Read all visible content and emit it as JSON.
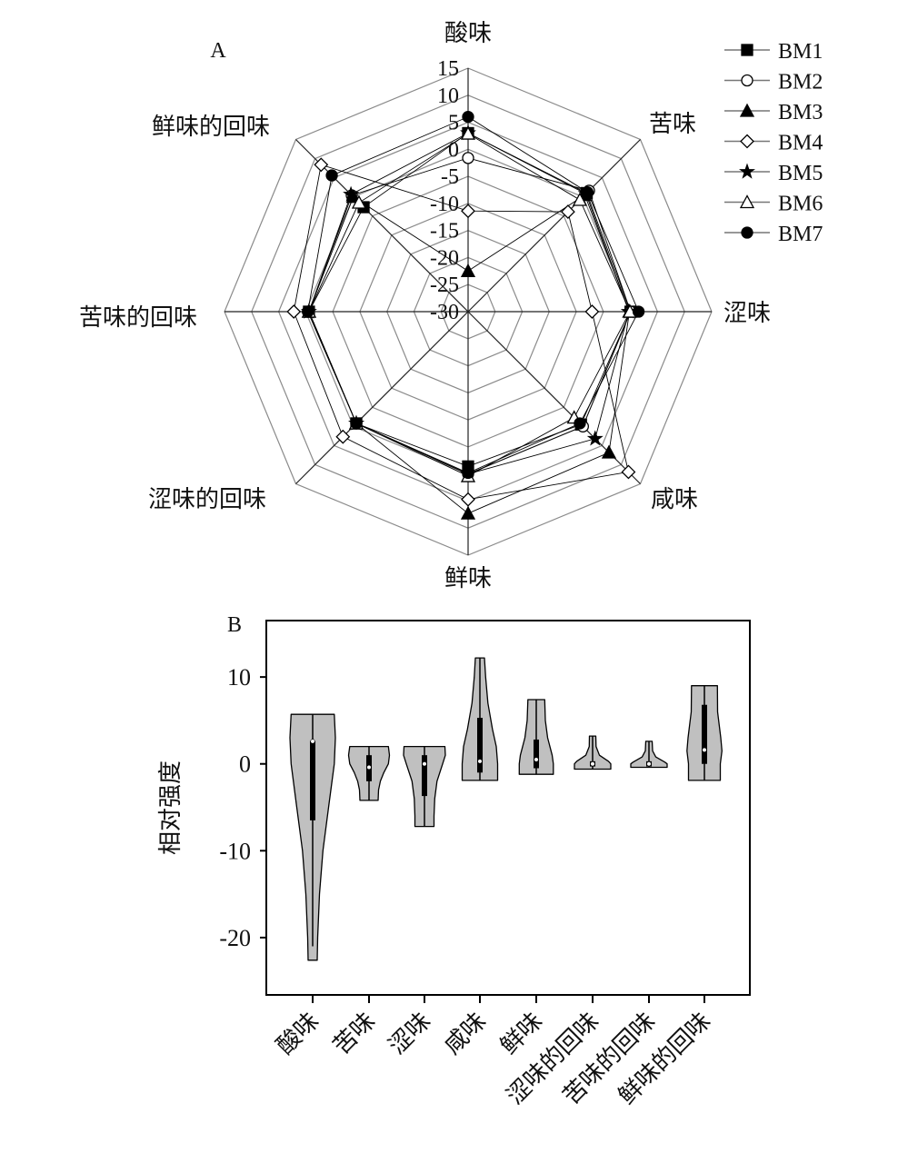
{
  "chart_data": [
    {
      "type": "radar",
      "panel_label": "A",
      "axes": [
        "酸味",
        "苦味",
        "涩味",
        "咸味",
        "鲜味",
        "涩味的回味",
        "苦味的回味",
        "鲜味的回味"
      ],
      "radial_ticks": [
        15,
        10,
        5,
        0,
        -5,
        -10,
        -15,
        -20,
        -25,
        -30
      ],
      "rlim": [
        -30,
        15
      ],
      "grid": true,
      "legend": "top-right",
      "series": [
        {
          "name": "BM1",
          "marker": "filled-square",
          "values": [
            3,
            1,
            0,
            -0.5,
            -1.4,
            -0.8,
            -0.6,
            -2.7
          ]
        },
        {
          "name": "BM2",
          "marker": "open-circle",
          "values": [
            -1.6,
            1.6,
            0,
            0,
            0,
            -0.8,
            -0.6,
            0.4
          ]
        },
        {
          "name": "BM3",
          "marker": "filled-triangle",
          "values": [
            -22.5,
            0.5,
            -0.2,
            6.8,
            7.3,
            -0.8,
            -0.6,
            0
          ]
        },
        {
          "name": "BM4",
          "marker": "open-diamond",
          "values": [
            -11.4,
            -3.9,
            -7.1,
            11.9,
            4.7,
            2.7,
            2.2,
            8.4
          ]
        },
        {
          "name": "BM5",
          "marker": "filled-star",
          "values": [
            3,
            0.8,
            -0.3,
            3.2,
            0,
            -0.8,
            -0.6,
            0.6
          ]
        },
        {
          "name": "BM6",
          "marker": "open-triangle",
          "values": [
            2.9,
            -0.8,
            -0.1,
            -2.3,
            0.4,
            -0.8,
            -0.6,
            -1.5
          ]
        },
        {
          "name": "BM7",
          "marker": "filled-circle",
          "values": [
            6.0,
            1.2,
            1.5,
            -0.8,
            -0.2,
            -0.8,
            -0.4,
            5.6
          ]
        }
      ]
    },
    {
      "type": "violin",
      "panel_label": "B",
      "ylabel": "相对强度",
      "yticks": [
        10,
        0,
        -10,
        -20
      ],
      "ylim": [
        -26.6,
        16.5
      ],
      "fill_color": "#c0c0c0",
      "categories": [
        "酸味",
        "苦味",
        "涩味",
        "咸味",
        "鲜味",
        "涩味的回味",
        "苦味的回味",
        "鲜味的回味"
      ],
      "violins": [
        {
          "min": -22.6,
          "max": 5.7,
          "median": 2.6,
          "q1": -6.5,
          "q3": 2.6,
          "whisker_low": -21,
          "whisker_high": 5.7,
          "density": [
            [
              5.7,
              0.95
            ],
            [
              3,
              1
            ],
            [
              0,
              0.95
            ],
            [
              -5,
              0.7
            ],
            [
              -10,
              0.45
            ],
            [
              -15,
              0.3
            ],
            [
              -20,
              0.22
            ],
            [
              -22.6,
              0.2
            ]
          ]
        },
        {
          "min": -4.2,
          "max": 2,
          "median": -0.4,
          "q1": -2,
          "q3": 1,
          "whisker_low": -4.2,
          "whisker_high": 2,
          "density": [
            [
              2,
              0.85
            ],
            [
              1,
              0.9
            ],
            [
              0,
              0.85
            ],
            [
              -1,
              0.65
            ],
            [
              -2,
              0.5
            ],
            [
              -3,
              0.42
            ],
            [
              -4.2,
              0.4
            ]
          ]
        },
        {
          "min": -7.2,
          "max": 2,
          "median": 0,
          "q1": -3.7,
          "q3": 1,
          "whisker_low": -7.2,
          "whisker_high": 2,
          "density": [
            [
              2,
              0.9
            ],
            [
              1,
              0.92
            ],
            [
              0,
              0.8
            ],
            [
              -2,
              0.55
            ],
            [
              -4,
              0.45
            ],
            [
              -6,
              0.42
            ],
            [
              -7.2,
              0.42
            ]
          ]
        },
        {
          "min": -1.9,
          "max": 12.2,
          "median": 0.3,
          "q1": -1,
          "q3": 5.3,
          "whisker_low": -1.9,
          "whisker_high": 12.2,
          "density": [
            [
              12.2,
              0.2
            ],
            [
              10,
              0.25
            ],
            [
              7,
              0.35
            ],
            [
              4,
              0.55
            ],
            [
              2,
              0.72
            ],
            [
              0,
              0.78
            ],
            [
              -1.9,
              0.78
            ]
          ]
        },
        {
          "min": -1.2,
          "max": 7.4,
          "median": 0.5,
          "q1": -0.5,
          "q3": 2.8,
          "whisker_low": -1.2,
          "whisker_high": 7.4,
          "density": [
            [
              7.4,
              0.37
            ],
            [
              5,
              0.4
            ],
            [
              3,
              0.5
            ],
            [
              1,
              0.7
            ],
            [
              0,
              0.75
            ],
            [
              -1.2,
              0.75
            ]
          ]
        },
        {
          "min": -0.6,
          "max": 3.2,
          "median": 0,
          "q1": -0.3,
          "q3": 0.3,
          "whisker_low": -0.6,
          "whisker_high": 3.2,
          "density": [
            [
              3.2,
              0.14
            ],
            [
              2,
              0.15
            ],
            [
              1,
              0.3
            ],
            [
              0.3,
              0.7
            ],
            [
              0,
              0.8
            ],
            [
              -0.6,
              0.8
            ]
          ]
        },
        {
          "min": -0.4,
          "max": 2.6,
          "median": 0,
          "q1": -0.3,
          "q3": 0.3,
          "whisker_low": -0.4,
          "whisker_high": 2.6,
          "density": [
            [
              2.6,
              0.14
            ],
            [
              1.5,
              0.16
            ],
            [
              0.8,
              0.3
            ],
            [
              0.2,
              0.7
            ],
            [
              0,
              0.8
            ],
            [
              -0.4,
              0.8
            ]
          ]
        },
        {
          "min": -1.9,
          "max": 9,
          "median": 1.6,
          "q1": 0,
          "q3": 6.8,
          "whisker_low": -1.9,
          "whisker_high": 9,
          "density": [
            [
              9,
              0.57
            ],
            [
              6,
              0.58
            ],
            [
              3,
              0.72
            ],
            [
              1.5,
              0.77
            ],
            [
              0,
              0.7
            ],
            [
              -1.9,
              0.7
            ]
          ]
        }
      ]
    }
  ]
}
